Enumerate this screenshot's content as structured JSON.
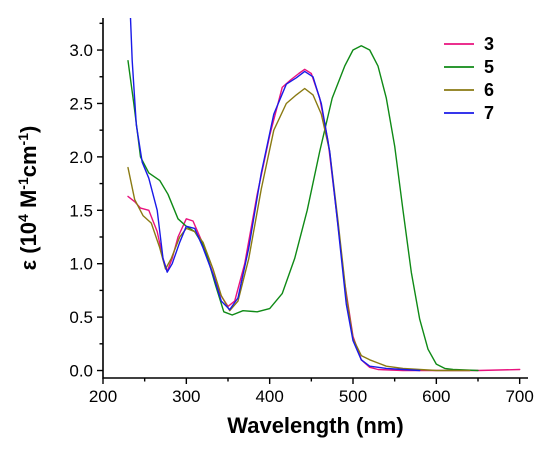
{
  "chart_data": {
    "type": "line",
    "xlabel": "Wavelength (nm)",
    "ylabel_parts": [
      "ε (10",
      "4",
      " M",
      "-1",
      "cm",
      "-1",
      ")"
    ],
    "xlim": [
      200,
      710
    ],
    "ylim": [
      -0.07,
      3.3
    ],
    "xticks": [
      200,
      300,
      400,
      500,
      600,
      700
    ],
    "yticks": [
      0.0,
      0.5,
      1.0,
      1.5,
      2.0,
      2.5,
      3.0
    ],
    "xtick_labels": [
      "200",
      "300",
      "400",
      "500",
      "600",
      "700"
    ],
    "ytick_labels": [
      "0.0",
      "0.5",
      "1.0",
      "1.5",
      "2.0",
      "2.5",
      "3.0"
    ],
    "legend_position": "top-right",
    "series": [
      {
        "name": "3",
        "color": "#e8127e",
        "points": [
          [
            230,
            1.63
          ],
          [
            238,
            1.58
          ],
          [
            245,
            1.52
          ],
          [
            255,
            1.5
          ],
          [
            265,
            1.3
          ],
          [
            272,
            1.05
          ],
          [
            277,
            0.93
          ],
          [
            283,
            1.05
          ],
          [
            290,
            1.25
          ],
          [
            300,
            1.42
          ],
          [
            308,
            1.4
          ],
          [
            318,
            1.22
          ],
          [
            330,
            0.95
          ],
          [
            340,
            0.72
          ],
          [
            350,
            0.6
          ],
          [
            358,
            0.65
          ],
          [
            370,
            1.0
          ],
          [
            385,
            1.65
          ],
          [
            400,
            2.2
          ],
          [
            415,
            2.65
          ],
          [
            425,
            2.72
          ],
          [
            435,
            2.78
          ],
          [
            442,
            2.82
          ],
          [
            450,
            2.78
          ],
          [
            460,
            2.55
          ],
          [
            470,
            2.15
          ],
          [
            480,
            1.5
          ],
          [
            490,
            0.82
          ],
          [
            500,
            0.32
          ],
          [
            510,
            0.1
          ],
          [
            520,
            0.03
          ],
          [
            530,
            0.01
          ],
          [
            560,
            0.0
          ],
          [
            600,
            0.0
          ],
          [
            650,
            0.0
          ],
          [
            700,
            0.01
          ]
        ]
      },
      {
        "name": "5",
        "color": "#0f8a16",
        "points": [
          [
            230,
            2.9
          ],
          [
            237,
            2.5
          ],
          [
            245,
            2.0
          ],
          [
            255,
            1.85
          ],
          [
            268,
            1.78
          ],
          [
            278,
            1.65
          ],
          [
            290,
            1.42
          ],
          [
            300,
            1.35
          ],
          [
            310,
            1.3
          ],
          [
            322,
            1.15
          ],
          [
            335,
            0.8
          ],
          [
            345,
            0.55
          ],
          [
            355,
            0.52
          ],
          [
            368,
            0.56
          ],
          [
            385,
            0.55
          ],
          [
            400,
            0.58
          ],
          [
            415,
            0.72
          ],
          [
            430,
            1.05
          ],
          [
            445,
            1.5
          ],
          [
            460,
            2.05
          ],
          [
            475,
            2.55
          ],
          [
            490,
            2.85
          ],
          [
            500,
            3.0
          ],
          [
            510,
            3.04
          ],
          [
            520,
            3.0
          ],
          [
            530,
            2.85
          ],
          [
            540,
            2.55
          ],
          [
            550,
            2.1
          ],
          [
            560,
            1.5
          ],
          [
            570,
            0.92
          ],
          [
            580,
            0.48
          ],
          [
            590,
            0.2
          ],
          [
            600,
            0.06
          ],
          [
            610,
            0.02
          ],
          [
            620,
            0.01
          ],
          [
            650,
            0.0
          ]
        ]
      },
      {
        "name": "6",
        "color": "#8a7a12",
        "points": [
          [
            230,
            1.9
          ],
          [
            238,
            1.6
          ],
          [
            248,
            1.45
          ],
          [
            258,
            1.38
          ],
          [
            268,
            1.15
          ],
          [
            275,
            0.95
          ],
          [
            282,
            1.05
          ],
          [
            292,
            1.25
          ],
          [
            300,
            1.33
          ],
          [
            310,
            1.3
          ],
          [
            320,
            1.2
          ],
          [
            332,
            0.95
          ],
          [
            342,
            0.7
          ],
          [
            352,
            0.56
          ],
          [
            362,
            0.65
          ],
          [
            375,
            1.05
          ],
          [
            390,
            1.7
          ],
          [
            405,
            2.25
          ],
          [
            420,
            2.5
          ],
          [
            432,
            2.58
          ],
          [
            442,
            2.64
          ],
          [
            452,
            2.58
          ],
          [
            462,
            2.4
          ],
          [
            472,
            2.05
          ],
          [
            482,
            1.4
          ],
          [
            492,
            0.7
          ],
          [
            500,
            0.3
          ],
          [
            510,
            0.14
          ],
          [
            520,
            0.1
          ],
          [
            530,
            0.07
          ],
          [
            540,
            0.04
          ],
          [
            560,
            0.02
          ],
          [
            580,
            0.01
          ],
          [
            600,
            0.0
          ],
          [
            620,
            0.0
          ],
          [
            640,
            0.0
          ]
        ]
      },
      {
        "name": "7",
        "color": "#1a1ae8",
        "points": [
          [
            233,
            3.3
          ],
          [
            235,
            2.9
          ],
          [
            240,
            2.3
          ],
          [
            247,
            1.95
          ],
          [
            255,
            1.8
          ],
          [
            265,
            1.5
          ],
          [
            272,
            1.05
          ],
          [
            277,
            0.92
          ],
          [
            283,
            1.0
          ],
          [
            292,
            1.2
          ],
          [
            300,
            1.35
          ],
          [
            310,
            1.33
          ],
          [
            320,
            1.15
          ],
          [
            332,
            0.9
          ],
          [
            342,
            0.65
          ],
          [
            352,
            0.57
          ],
          [
            362,
            0.68
          ],
          [
            375,
            1.15
          ],
          [
            390,
            1.85
          ],
          [
            405,
            2.4
          ],
          [
            420,
            2.68
          ],
          [
            432,
            2.74
          ],
          [
            442,
            2.8
          ],
          [
            452,
            2.75
          ],
          [
            462,
            2.5
          ],
          [
            472,
            2.05
          ],
          [
            482,
            1.35
          ],
          [
            492,
            0.62
          ],
          [
            500,
            0.28
          ],
          [
            510,
            0.1
          ],
          [
            520,
            0.04
          ],
          [
            540,
            0.02
          ],
          [
            560,
            0.01
          ],
          [
            580,
            0.0
          ]
        ]
      }
    ]
  }
}
